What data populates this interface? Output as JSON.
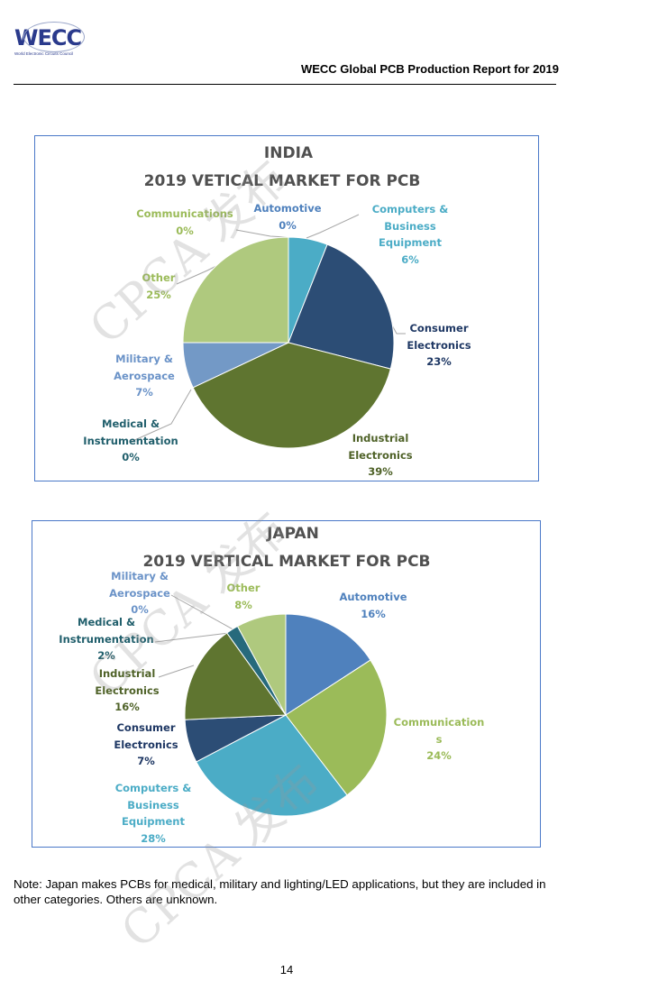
{
  "header": {
    "logo_text": "WECC",
    "logo_subtext": "World Electronic Circuits Council",
    "title": "WECC Global PCB Production Report for 2019"
  },
  "watermark": "CPCA 发布",
  "chart_data": [
    {
      "type": "pie",
      "title": "INDIA",
      "subtitle": "2019 VETICAL MARKET FOR PCB",
      "slices": [
        {
          "label": "Automotive",
          "value": 0,
          "pct": "0%",
          "color": "#4f81bd"
        },
        {
          "label": "Computers &\nBusiness\nEquipment",
          "value": 6,
          "pct": "6%",
          "color": "#4bacc6"
        },
        {
          "label": "Consumer\nElectronics",
          "value": 23,
          "pct": "23%",
          "color": "#2c4d75"
        },
        {
          "label": "Industrial\nElectronics",
          "value": 39,
          "pct": "39%",
          "color": "#5f7530"
        },
        {
          "label": "Medical &\nInstrumentation",
          "value": 0,
          "pct": "0%",
          "color": "#276a7c"
        },
        {
          "label": "Military &\nAerospace",
          "value": 7,
          "pct": "7%",
          "color": "#7399c6"
        },
        {
          "label": "Other",
          "value": 25,
          "pct": "25%",
          "color": "#afc97e"
        },
        {
          "label": "Communications",
          "value": 0,
          "pct": "0%",
          "color": "#9bbb59"
        }
      ]
    },
    {
      "type": "pie",
      "title": "JAPAN",
      "subtitle": "2019 VERTICAL MARKET FOR PCB",
      "slices": [
        {
          "label": "Automotive",
          "value": 16,
          "pct": "16%",
          "color": "#4f81bd"
        },
        {
          "label": "Communication\ns",
          "value": 24,
          "pct": "24%",
          "color": "#9bbb59"
        },
        {
          "label": "Computers &\nBusiness\nEquipment",
          "value": 28,
          "pct": "28%",
          "color": "#4bacc6"
        },
        {
          "label": "Consumer\nElectronics",
          "value": 7,
          "pct": "7%",
          "color": "#2c4d75"
        },
        {
          "label": "Industrial\nElectronics",
          "value": 16,
          "pct": "16%",
          "color": "#5f7530"
        },
        {
          "label": "Medical &\nInstrumentation",
          "value": 2,
          "pct": "2%",
          "color": "#276a7c"
        },
        {
          "label": "Military &\nAerospace",
          "value": 0,
          "pct": "0%",
          "color": "#7399c6"
        },
        {
          "label": "Other",
          "value": 8,
          "pct": "8%",
          "color": "#afc97e"
        }
      ]
    }
  ],
  "label_colors": [
    "#4f81bd",
    "#4bacc6",
    "#1f3864",
    "#4f6228",
    "#215f6c",
    "#6b93c8",
    "#9bbb59"
  ],
  "note": "Note: Japan makes PCBs for medical, military and lighting/LED applications, but they are included in other categories. Others are unknown.",
  "page_number": "14"
}
